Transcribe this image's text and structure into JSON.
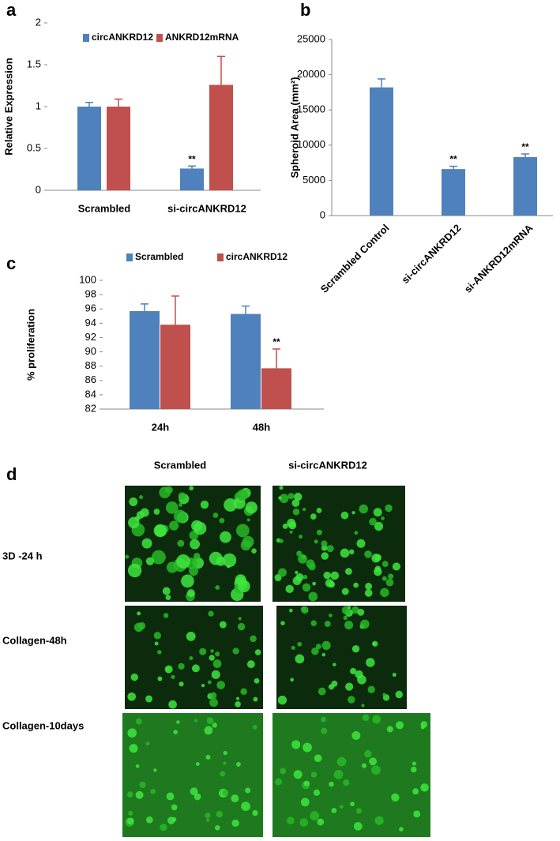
{
  "panels": [
    "a",
    "b",
    "c",
    "d"
  ],
  "chart_data": [
    {
      "type": "bar",
      "ylabel": "Relative Expression",
      "categories": [
        "Scrambled",
        "si-circANKRD12"
      ],
      "series": [
        {
          "name": "circANKRD12",
          "color": "#4f81bd",
          "values": [
            1.0,
            0.26
          ],
          "errors": [
            0.05,
            0.03
          ],
          "significance": [
            null,
            "**"
          ]
        },
        {
          "name": "ANKRD12mRNA",
          "color": "#c0504d",
          "values": [
            1.0,
            1.26
          ],
          "errors": [
            0.09,
            0.34
          ],
          "significance": [
            null,
            null
          ]
        }
      ],
      "ylim": [
        0,
        2
      ],
      "yticks": [
        0,
        0.5,
        1,
        1.5,
        2
      ],
      "legend": "top"
    },
    {
      "type": "bar",
      "ylabel": "Spheroid Area (mm²)",
      "categories": [
        "Scrambled Control",
        "si-circANKRD12",
        "si-ANKRD12mRNA"
      ],
      "series": [
        {
          "color": "#4f81bd",
          "values": [
            18200,
            6600,
            8300
          ],
          "errors": [
            1200,
            400,
            450
          ],
          "significance": [
            null,
            "**",
            "**"
          ]
        }
      ],
      "ylim": [
        0,
        25000
      ],
      "yticks": [
        0,
        5000,
        10000,
        15000,
        20000,
        25000
      ]
    },
    {
      "type": "bar",
      "ylabel": "% proliferation",
      "categories": [
        "24h",
        "48h"
      ],
      "series": [
        {
          "name": "Scrambled",
          "color": "#4f81bd",
          "values": [
            95.7,
            95.3
          ],
          "errors": [
            1.0,
            1.1
          ],
          "significance": [
            null,
            null
          ]
        },
        {
          "name": "circANKRD12",
          "color": "#c0504d",
          "values": [
            93.8,
            87.7
          ],
          "errors": [
            4.0,
            2.7
          ],
          "significance": [
            null,
            "**"
          ]
        }
      ],
      "ylim": [
        82,
        100
      ],
      "yticks": [
        82,
        84,
        86,
        88,
        90,
        92,
        94,
        96,
        98,
        100
      ],
      "legend": "top"
    }
  ],
  "image_panel": {
    "columns": [
      "Scrambled",
      "si-circANKRD12"
    ],
    "rows": [
      "3D -24 h",
      "Collagen-48h",
      "Collagen-10days"
    ]
  }
}
